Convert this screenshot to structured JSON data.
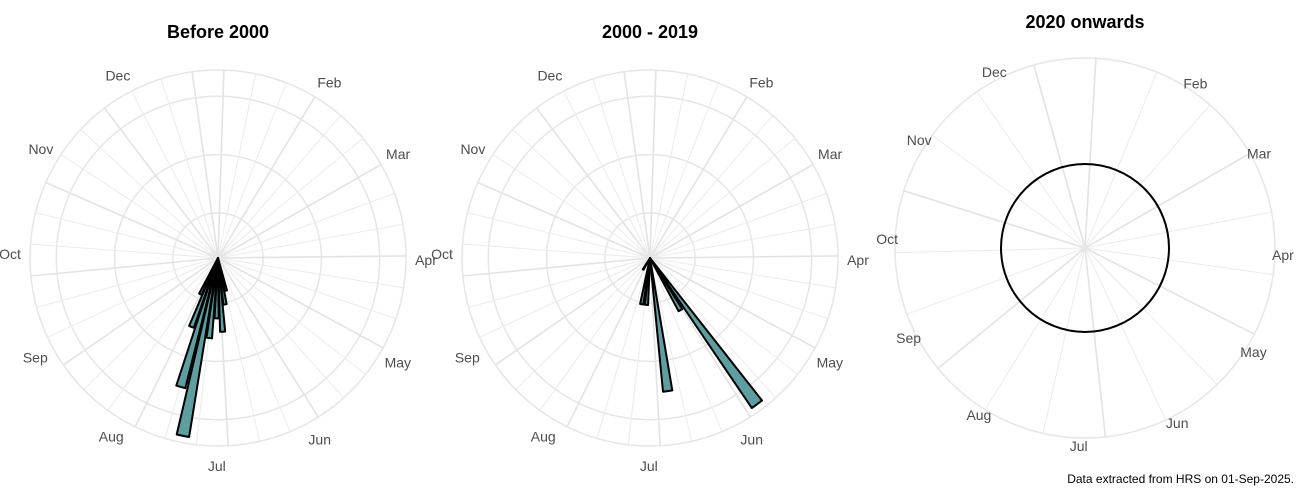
{
  "caption": "Data extracted from HRS on 01-Sep-2025.",
  "chart_data": [
    {
      "type": "polar-bar",
      "title": "Before 2000",
      "bar_color": "#5f9ea0",
      "tick_labels": [
        "Feb",
        "Mar",
        "Apr",
        "May",
        "Jun",
        "Jul",
        "Aug",
        "Sep",
        "Oct",
        "Nov",
        "Dec"
      ],
      "bars": [
        {
          "x": "Jun 17",
          "value": 5
        },
        {
          "x": "Jun 22",
          "value": 7
        },
        {
          "x": "Jun 27",
          "value": 11
        },
        {
          "x": "Jul 2",
          "value": 9
        },
        {
          "x": "Jul 7",
          "value": 12
        },
        {
          "x": "Jul 12",
          "value": 27
        },
        {
          "x": "Jul 17",
          "value": 20
        },
        {
          "x": "Jul 22",
          "value": 11
        },
        {
          "x": "Jul 27",
          "value": 6
        }
      ]
    },
    {
      "type": "polar-bar",
      "title": "2000 - 2019",
      "bar_color": "#5f9ea0",
      "tick_labels": [
        "Feb",
        "Mar",
        "Apr",
        "May",
        "Jun",
        "Jul",
        "Aug",
        "Sep",
        "Oct",
        "Nov",
        "Dec"
      ],
      "bars": [
        {
          "x": "May 25",
          "value": 27
        },
        {
          "x": "May 31",
          "value": 9
        },
        {
          "x": "Jun 23",
          "value": 20
        },
        {
          "x": "Jul 5",
          "value": 7
        },
        {
          "x": "Jul 11",
          "value": 7
        },
        {
          "x": "Aug 1",
          "value": 2
        }
      ]
    },
    {
      "type": "polar-bar",
      "title": "2020 onwards",
      "bar_color": "#5f9ea0",
      "tick_labels": [
        "Dec",
        "Feb",
        "Mar",
        "Apr",
        "May",
        "Jun",
        "Jul",
        "Aug",
        "Sep",
        "Oct",
        "Nov"
      ],
      "bars": []
    }
  ]
}
